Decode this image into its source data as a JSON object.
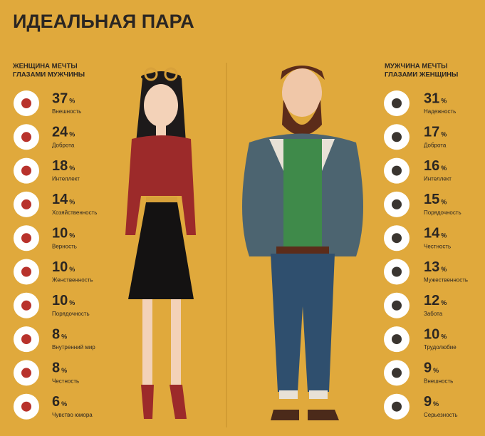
{
  "title": "ИДЕАЛЬНАЯ ПАРА",
  "left": {
    "heading": [
      "ЖЕНЩИНА МЕЧТЫ",
      "ГЛАЗАМИ МУЖЧИНЫ"
    ],
    "items": [
      {
        "value": 37,
        "unit": "%",
        "label": "Внешность"
      },
      {
        "value": 24,
        "unit": "%",
        "label": "Доброта"
      },
      {
        "value": 18,
        "unit": "%",
        "label": "Интеллект"
      },
      {
        "value": 14,
        "unit": "%",
        "label": "Хозяйственность"
      },
      {
        "value": 10,
        "unit": "%",
        "label": "Верность"
      },
      {
        "value": 10,
        "unit": "%",
        "label": "Женственность"
      },
      {
        "value": 10,
        "unit": "%",
        "label": "Порядочность"
      },
      {
        "value": 8,
        "unit": "%",
        "label": "Внутренний мир"
      },
      {
        "value": 8,
        "unit": "%",
        "label": "Честность"
      },
      {
        "value": 6,
        "unit": "%",
        "label": "Чувство юмора"
      }
    ]
  },
  "right": {
    "heading": [
      "МУЖЧИНА МЕЧТЫ",
      "ГЛАЗАМИ ЖЕНЩИНЫ"
    ],
    "items": [
      {
        "value": 31,
        "unit": "%",
        "label": "Надежность"
      },
      {
        "value": 17,
        "unit": "%",
        "label": "Доброта"
      },
      {
        "value": 16,
        "unit": "%",
        "label": "Интеллект"
      },
      {
        "value": 15,
        "unit": "%",
        "label": "Порядочность"
      },
      {
        "value": 14,
        "unit": "%",
        "label": "Честность"
      },
      {
        "value": 13,
        "unit": "%",
        "label": "Мужественность"
      },
      {
        "value": 12,
        "unit": "%",
        "label": "Забота"
      },
      {
        "value": 10,
        "unit": "%",
        "label": "Трудолюбие"
      },
      {
        "value": 9,
        "unit": "%",
        "label": "Внешность"
      },
      {
        "value": 9,
        "unit": "%",
        "label": "Серьезность"
      }
    ]
  }
}
